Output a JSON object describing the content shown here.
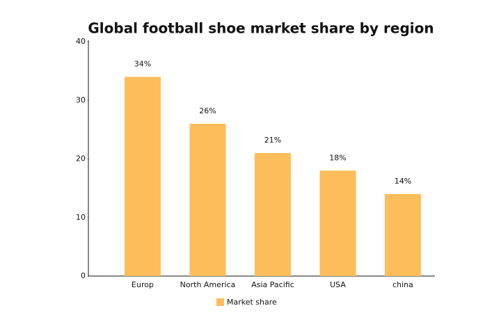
{
  "chart_data": {
    "type": "bar",
    "title": "Global football shoe market share by region",
    "categories": [
      "Europ",
      "North America",
      "Asia Pacific",
      "USA",
      "china"
    ],
    "series": [
      {
        "name": "Market share",
        "color": "#fdbd5a",
        "values": [
          34,
          26,
          21,
          18,
          14
        ],
        "value_labels": [
          "34%",
          "26%",
          "21%",
          "18%",
          "14%"
        ]
      }
    ],
    "ylim": [
      0,
      40
    ],
    "yticks": [
      0,
      10,
      20,
      30,
      40
    ],
    "grid": false,
    "legend": "bottom"
  }
}
